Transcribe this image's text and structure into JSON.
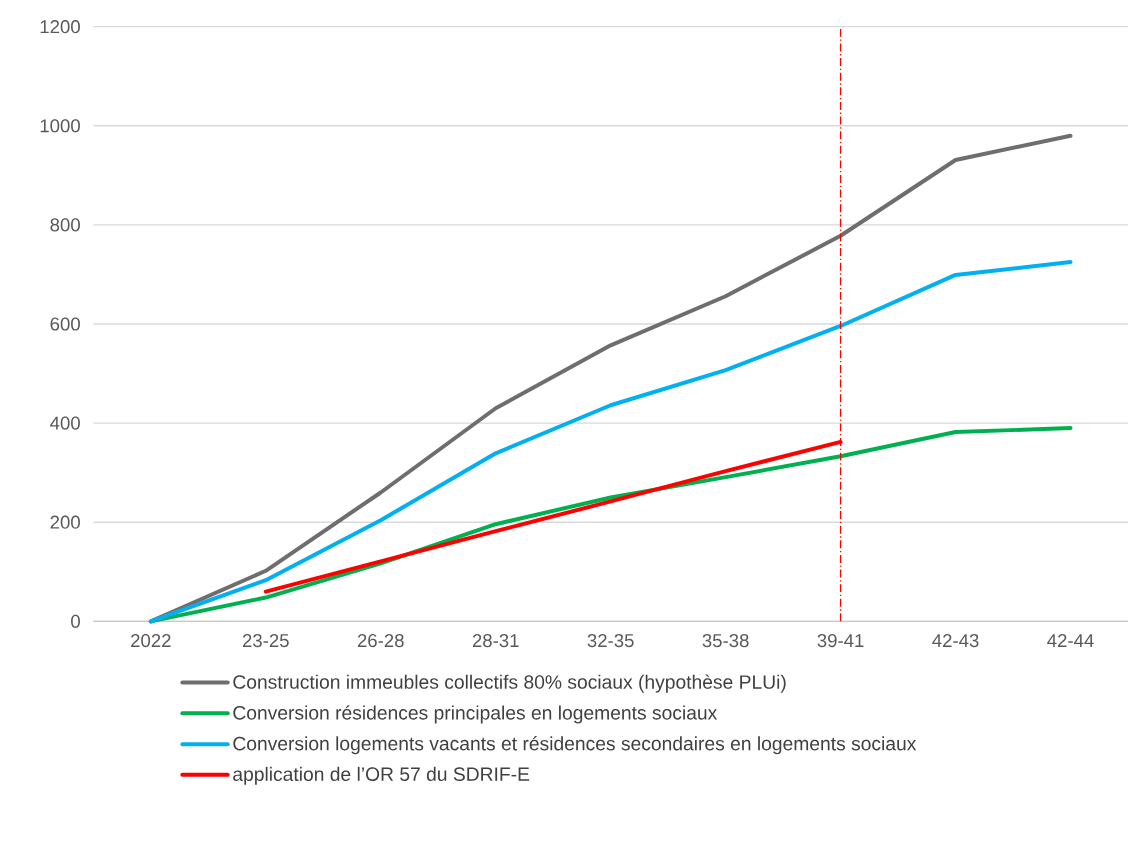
{
  "chart_data": {
    "type": "line",
    "categories": [
      "2022",
      "23-25",
      "26-28",
      "28-31",
      "32-35",
      "35-38",
      "39-41",
      "42-43",
      "42-44"
    ],
    "series": [
      {
        "name": "Construction immeubles collectifs 80% sociaux (hypothèse PLUi)",
        "color": "#6e6e6e",
        "values": [
          0,
          102,
          260,
          430,
          557,
          656,
          778,
          931,
          980
        ]
      },
      {
        "name": "Conversion résidences principales en logements sociaux",
        "color": "#00b050",
        "values": [
          0,
          48,
          117,
          196,
          250,
          291,
          333,
          382,
          390
        ]
      },
      {
        "name": "Conversion logements vacants et résidences secondaires en logements sociaux",
        "color": "#00b0f0",
        "values": [
          0,
          83,
          204,
          339,
          436,
          507,
          596,
          699,
          725
        ]
      },
      {
        "name": "application de l’OR 57 du SDRIF-E",
        "color": "#ff0000",
        "values": [
          null,
          60,
          121,
          182,
          242,
          303,
          362,
          null,
          null
        ]
      }
    ],
    "ylim": [
      0,
      1200
    ],
    "yticks": [
      0,
      200,
      400,
      600,
      800,
      1000,
      1200
    ],
    "grid": "y",
    "legend": "bottom",
    "marker": "none",
    "line_style": "solid",
    "ref_lines": [
      {
        "axis": "x",
        "value": "39-41",
        "color": "#ff0000",
        "line_style": "dashed"
      }
    ]
  }
}
